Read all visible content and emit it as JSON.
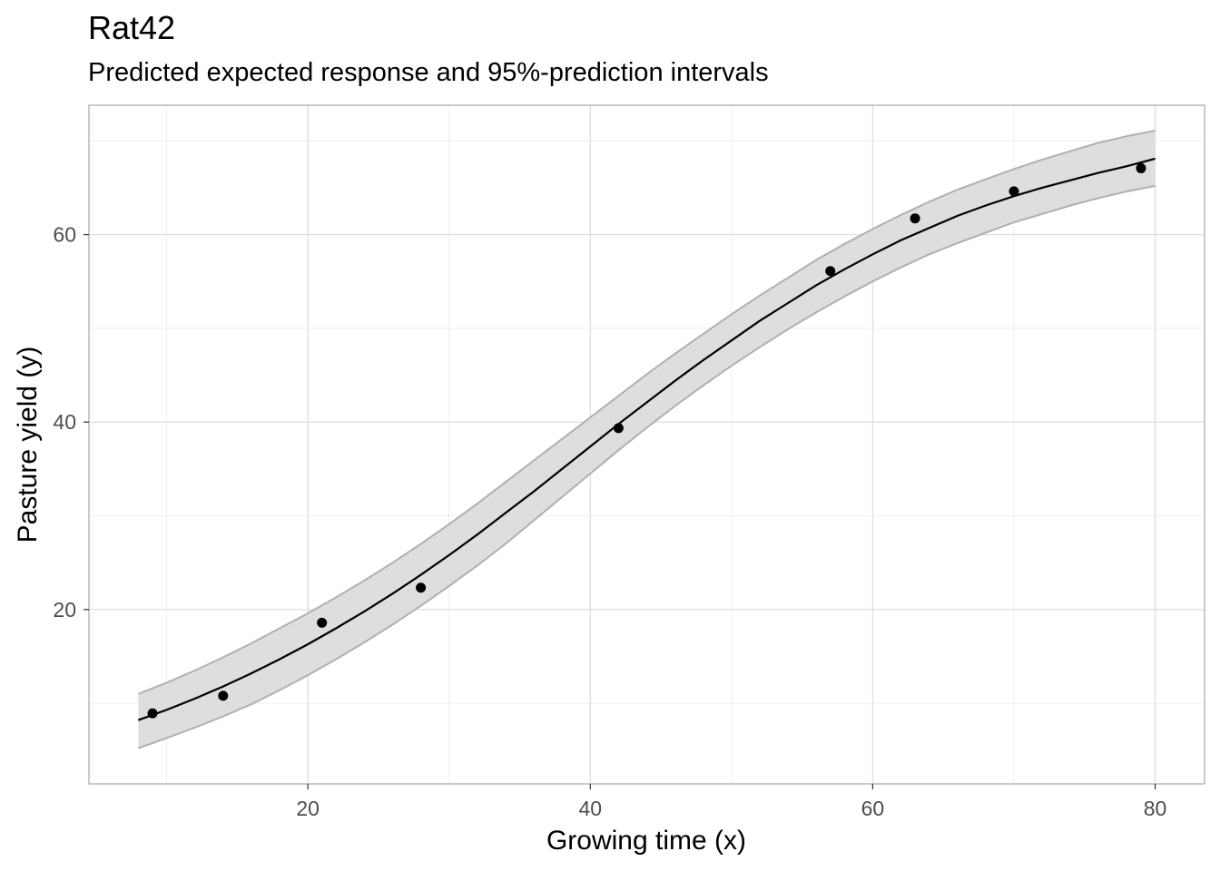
{
  "chart_data": {
    "type": "scatter",
    "title": "Rat42",
    "subtitle": "Predicted expected response and 95%-prediction intervals",
    "xlabel": "Growing time (x)",
    "ylabel": "Pasture yield (y)",
    "xlim": [
      4.5,
      83.5
    ],
    "ylim": [
      1.4,
      73.8
    ],
    "x_ticks": [
      20,
      40,
      60,
      80
    ],
    "y_ticks": [
      20,
      40,
      60
    ],
    "x_minor": [
      10,
      30,
      50,
      70
    ],
    "y_minor": [
      10,
      30,
      50,
      70
    ],
    "grid": true,
    "colors": {
      "points": "#000000",
      "fit": "#000000",
      "band_fill": "#dedede",
      "band_edge": "#b0b0b0",
      "grid": "#e0e0e0",
      "panel_border": "#b3b3b3"
    },
    "observed": {
      "x": [
        9,
        14,
        21,
        28,
        42,
        57,
        63,
        70,
        79
      ],
      "y": [
        8.93,
        10.8,
        18.59,
        22.33,
        39.35,
        56.11,
        61.73,
        64.62,
        67.08
      ]
    },
    "fit": {
      "x": [
        8,
        10,
        12,
        14,
        16,
        18,
        20,
        22,
        24,
        26,
        28,
        30,
        32,
        34,
        36,
        38,
        40,
        42,
        44,
        46,
        48,
        50,
        52,
        54,
        56,
        58,
        60,
        62,
        64,
        66,
        68,
        70,
        72,
        74,
        76,
        78,
        80
      ],
      "y": [
        8.2,
        9.3,
        10.5,
        11.8,
        13.2,
        14.7,
        16.3,
        18.0,
        19.8,
        21.7,
        23.7,
        25.8,
        28.0,
        30.3,
        32.6,
        35.0,
        37.4,
        39.8,
        42.1,
        44.4,
        46.6,
        48.7,
        50.8,
        52.7,
        54.6,
        56.3,
        57.9,
        59.4,
        60.7,
        62.0,
        63.1,
        64.1,
        65.0,
        65.8,
        66.6,
        67.3,
        68.1
      ],
      "lower": [
        5.2,
        6.3,
        7.4,
        8.6,
        9.9,
        11.4,
        13.0,
        14.7,
        16.5,
        18.4,
        20.4,
        22.5,
        24.7,
        27.0,
        29.5,
        32.0,
        34.5,
        37.0,
        39.4,
        41.7,
        43.9,
        46.0,
        48.0,
        49.9,
        51.7,
        53.4,
        55.0,
        56.5,
        57.9,
        59.1,
        60.2,
        61.3,
        62.2,
        63.1,
        63.9,
        64.6,
        65.2
      ],
      "upper": [
        11.0,
        12.2,
        13.5,
        14.9,
        16.4,
        18.0,
        19.6,
        21.3,
        23.1,
        25.0,
        27.0,
        29.1,
        31.3,
        33.6,
        35.9,
        38.2,
        40.5,
        42.8,
        45.1,
        47.3,
        49.4,
        51.5,
        53.5,
        55.4,
        57.3,
        59.0,
        60.6,
        62.1,
        63.5,
        64.8,
        65.9,
        67.0,
        68.0,
        68.9,
        69.8,
        70.5,
        71.1
      ]
    }
  }
}
